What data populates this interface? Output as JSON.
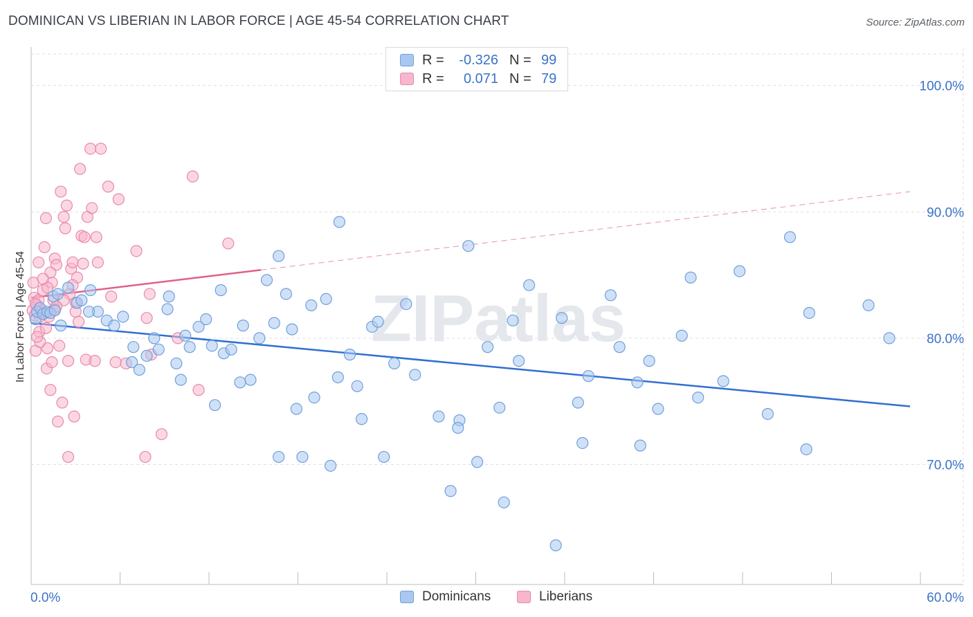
{
  "title": "DOMINICAN VS LIBERIAN IN LABOR FORCE | AGE 45-54 CORRELATION CHART",
  "source": "Source: ZipAtlas.com",
  "watermark": "ZIPatlas",
  "legend": {
    "rows": [
      {
        "r_label": "R =",
        "r_value": "-0.326",
        "n_label": "N =",
        "n_value": "99"
      },
      {
        "r_label": "R =",
        "r_value": "0.071",
        "n_label": "N =",
        "n_value": "79"
      }
    ]
  },
  "bottom_legend": [
    "Dominicans",
    "Liberians"
  ],
  "colors": {
    "blue_fill": "#a9c8f0",
    "blue_stroke": "#6d9fdc",
    "blue_line": "#2f6fd0",
    "pink_fill": "#f7b6cc",
    "pink_stroke": "#e889a8",
    "pink_line": "#e0608b",
    "axis_text": "#3a73c8",
    "grid": "#dcdfe4"
  },
  "chart_data": {
    "type": "scatter",
    "title": "DOMINICAN VS LIBERIAN IN LABOR FORCE | AGE 45-54 CORRELATION CHART",
    "xlabel": "",
    "ylabel": "In Labor Force | Age 45-54",
    "xlim": [
      0,
      60
    ],
    "ylim": [
      60.5,
      102.5
    ],
    "x_tick_labels": [
      "0.0%",
      "60.0%"
    ],
    "y_ticks": [
      70,
      80,
      90,
      100
    ],
    "y_tick_labels": [
      "70.0%",
      "80.0%",
      "90.0%",
      "100.0%"
    ],
    "grid": true,
    "series": [
      {
        "name": "Dominicans",
        "color": "#a9c8f0",
        "points": [
          [
            0.3,
            81.5
          ],
          [
            0.4,
            82.1
          ],
          [
            0.6,
            82.4
          ],
          [
            0.8,
            81.9
          ],
          [
            1.1,
            82.1
          ],
          [
            1.3,
            82.0
          ],
          [
            1.5,
            83.3
          ],
          [
            1.6,
            82.2
          ],
          [
            1.8,
            83.5
          ],
          [
            2.0,
            81.0
          ],
          [
            2.5,
            84.0
          ],
          [
            3.1,
            82.8
          ],
          [
            3.4,
            83.0
          ],
          [
            4.0,
            83.8
          ],
          [
            4.5,
            82.1
          ],
          [
            5.1,
            81.4
          ],
          [
            5.6,
            81.0
          ],
          [
            6.2,
            81.7
          ],
          [
            6.8,
            78.1
          ],
          [
            7.3,
            77.5
          ],
          [
            7.8,
            78.6
          ],
          [
            8.3,
            80.0
          ],
          [
            8.6,
            79.1
          ],
          [
            9.3,
            83.3
          ],
          [
            9.8,
            78.0
          ],
          [
            10.1,
            76.7
          ],
          [
            10.4,
            80.2
          ],
          [
            10.7,
            79.3
          ],
          [
            11.3,
            80.9
          ],
          [
            11.8,
            81.5
          ],
          [
            12.2,
            79.4
          ],
          [
            12.8,
            83.8
          ],
          [
            13.0,
            78.8
          ],
          [
            13.5,
            79.1
          ],
          [
            14.1,
            76.5
          ],
          [
            14.3,
            81.0
          ],
          [
            14.8,
            76.7
          ],
          [
            15.4,
            80.0
          ],
          [
            15.9,
            84.6
          ],
          [
            16.4,
            81.2
          ],
          [
            16.7,
            86.5
          ],
          [
            17.2,
            83.5
          ],
          [
            17.6,
            80.7
          ],
          [
            17.9,
            74.4
          ],
          [
            18.3,
            70.6
          ],
          [
            18.9,
            82.6
          ],
          [
            19.1,
            75.3
          ],
          [
            19.9,
            83.1
          ],
          [
            20.2,
            69.9
          ],
          [
            20.7,
            76.9
          ],
          [
            20.8,
            89.2
          ],
          [
            21.5,
            78.7
          ],
          [
            22.0,
            76.2
          ],
          [
            22.3,
            73.6
          ],
          [
            23.0,
            80.9
          ],
          [
            23.4,
            81.3
          ],
          [
            23.8,
            70.6
          ],
          [
            24.5,
            78.0
          ],
          [
            25.3,
            82.7
          ],
          [
            25.9,
            77.1
          ],
          [
            27.5,
            73.8
          ],
          [
            28.3,
            67.9
          ],
          [
            28.9,
            73.5
          ],
          [
            29.5,
            87.3
          ],
          [
            30.1,
            70.2
          ],
          [
            30.8,
            79.3
          ],
          [
            31.6,
            74.5
          ],
          [
            31.9,
            67.0
          ],
          [
            32.5,
            81.4
          ],
          [
            32.9,
            78.2
          ],
          [
            33.6,
            84.2
          ],
          [
            35.4,
            63.6
          ],
          [
            35.8,
            81.6
          ],
          [
            36.9,
            74.9
          ],
          [
            37.2,
            71.7
          ],
          [
            37.6,
            77.0
          ],
          [
            39.1,
            83.4
          ],
          [
            39.7,
            79.3
          ],
          [
            40.9,
            76.5
          ],
          [
            41.1,
            71.5
          ],
          [
            41.7,
            78.2
          ],
          [
            42.3,
            74.4
          ],
          [
            43.9,
            80.2
          ],
          [
            44.5,
            84.8
          ],
          [
            45.0,
            75.3
          ],
          [
            46.7,
            76.6
          ],
          [
            49.7,
            74.0
          ],
          [
            51.2,
            88.0
          ],
          [
            52.3,
            71.2
          ],
          [
            52.5,
            82.0
          ],
          [
            57.9,
            80.0
          ],
          [
            56.5,
            82.6
          ],
          [
            47.8,
            85.3
          ],
          [
            28.8,
            72.9
          ],
          [
            16.7,
            70.6
          ],
          [
            12.4,
            74.7
          ],
          [
            9.2,
            82.3
          ],
          [
            6.9,
            79.3
          ],
          [
            3.9,
            82.1
          ]
        ],
        "trend": {
          "x": [
            0,
            59.3
          ],
          "y": [
            81.2,
            74.6
          ]
        }
      },
      {
        "name": "Liberians",
        "color": "#f7b6cc",
        "points": [
          [
            0.1,
            82.2
          ],
          [
            0.15,
            84.4
          ],
          [
            0.2,
            83.2
          ],
          [
            0.25,
            81.8
          ],
          [
            0.3,
            79.0
          ],
          [
            0.4,
            82.6
          ],
          [
            0.5,
            86.0
          ],
          [
            0.55,
            80.5
          ],
          [
            0.6,
            81.7
          ],
          [
            0.7,
            82.2
          ],
          [
            0.8,
            83.8
          ],
          [
            0.9,
            87.2
          ],
          [
            1.0,
            89.5
          ],
          [
            1.05,
            77.6
          ],
          [
            1.1,
            79.2
          ],
          [
            1.2,
            81.7
          ],
          [
            1.3,
            75.9
          ],
          [
            1.4,
            84.4
          ],
          [
            1.5,
            83.0
          ],
          [
            1.6,
            86.3
          ],
          [
            1.7,
            85.8
          ],
          [
            1.8,
            73.4
          ],
          [
            1.9,
            79.4
          ],
          [
            2.0,
            91.6
          ],
          [
            2.1,
            74.9
          ],
          [
            2.2,
            89.6
          ],
          [
            2.3,
            88.7
          ],
          [
            2.4,
            90.5
          ],
          [
            2.5,
            78.2
          ],
          [
            2.6,
            83.5
          ],
          [
            2.7,
            85.5
          ],
          [
            2.8,
            86.0
          ],
          [
            2.9,
            73.8
          ],
          [
            3.0,
            82.8
          ],
          [
            3.1,
            84.8
          ],
          [
            3.2,
            81.3
          ],
          [
            3.3,
            93.4
          ],
          [
            3.4,
            88.1
          ],
          [
            3.5,
            85.9
          ],
          [
            3.6,
            88.0
          ],
          [
            3.7,
            78.3
          ],
          [
            3.8,
            89.6
          ],
          [
            4.0,
            95.0
          ],
          [
            4.1,
            90.3
          ],
          [
            4.3,
            78.2
          ],
          [
            4.4,
            88.0
          ],
          [
            4.5,
            86.0
          ],
          [
            4.7,
            95.0
          ],
          [
            5.2,
            92.0
          ],
          [
            5.4,
            83.3
          ],
          [
            5.7,
            78.1
          ],
          [
            5.9,
            91.0
          ],
          [
            6.4,
            78.0
          ],
          [
            7.1,
            86.9
          ],
          [
            7.7,
            70.6
          ],
          [
            7.8,
            81.6
          ],
          [
            8.0,
            83.5
          ],
          [
            8.1,
            78.7
          ],
          [
            8.8,
            72.4
          ],
          [
            9.9,
            80.0
          ],
          [
            10.9,
            92.8
          ],
          [
            11.3,
            75.9
          ],
          [
            13.3,
            87.5
          ],
          [
            1.3,
            85.2
          ],
          [
            0.5,
            83.0
          ],
          [
            0.9,
            82.0
          ],
          [
            1.6,
            82.3
          ],
          [
            2.5,
            70.6
          ],
          [
            2.2,
            83.0
          ],
          [
            1.0,
            80.8
          ],
          [
            0.3,
            82.7
          ],
          [
            0.6,
            79.7
          ],
          [
            1.1,
            84.0
          ],
          [
            1.4,
            78.1
          ],
          [
            2.8,
            84.2
          ],
          [
            3.0,
            82.1
          ],
          [
            1.7,
            82.5
          ],
          [
            0.4,
            80.1
          ],
          [
            0.8,
            84.7
          ]
        ],
        "trend": {
          "x": [
            0,
            15.5
          ],
          "y": [
            83.2,
            85.4
          ]
        },
        "trend_extension": {
          "x": [
            15.5,
            59.3
          ],
          "y": [
            85.4,
            91.6
          ]
        }
      }
    ]
  }
}
